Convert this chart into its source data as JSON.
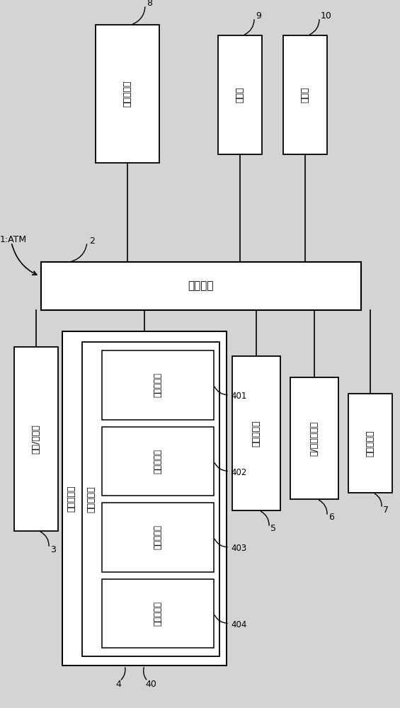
{
  "bg_color": "#d4d4d4",
  "box_color": "#ffffff",
  "box_edge": "#000000",
  "main_ctrl_label": "主控制部",
  "atm_label": "1:ATM",
  "num2": "2",
  "boxes_top": [
    {
      "label": "声音引导部",
      "num": "8"
    },
    {
      "label": "存储部",
      "num": "9"
    },
    {
      "label": "通信部",
      "num": "10"
    }
  ],
  "box3_label": "显示/操作部",
  "box3_num": "3",
  "box5_label": "硬币处理部",
  "box5_num": "5",
  "box6_label": "卡/单票处理部",
  "box6_num": "6",
  "box7_label": "存折处理部",
  "box7_num": "7",
  "outer_label": "纸币处理部",
  "outer_num": "4",
  "outer_num2": "40",
  "mid_label": "纸币识别部",
  "sensors": [
    {
      "label": "读取传感器",
      "num": "401"
    },
    {
      "label": "磁性传感器",
      "num": "402"
    },
    {
      "label": "透射传感器",
      "num": "403"
    },
    {
      "label": "识别存储部",
      "num": "404"
    }
  ]
}
